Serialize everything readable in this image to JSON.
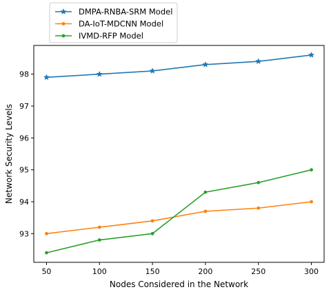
{
  "chart_data": {
    "type": "line",
    "title": "",
    "xlabel": "Nodes Considered in the Network",
    "ylabel": "Network Security Levels",
    "x": [
      50,
      100,
      150,
      200,
      250,
      300
    ],
    "xticks": [
      50,
      100,
      150,
      200,
      250,
      300
    ],
    "yticks": [
      93,
      94,
      95,
      96,
      97,
      98
    ],
    "xlim": [
      38,
      312
    ],
    "ylim": [
      92.1,
      98.9
    ],
    "grid": false,
    "legend": "top-left, above axes",
    "series": [
      {
        "name": "DMPA-RNBA-SRM Model",
        "color": "#1f77b4",
        "marker": "star",
        "values": [
          97.9,
          98.0,
          98.1,
          98.3,
          98.4,
          98.6
        ]
      },
      {
        "name": "DA-IoT-MDCNN Model",
        "color": "#ff7f0e",
        "marker": "dot",
        "values": [
          93.0,
          93.2,
          93.4,
          93.7,
          93.8,
          94.0
        ]
      },
      {
        "name": "IVMD-RFP Model",
        "color": "#2ca02c",
        "marker": "dot",
        "values": [
          92.4,
          92.8,
          93.0,
          94.3,
          94.6,
          95.0
        ]
      }
    ]
  }
}
